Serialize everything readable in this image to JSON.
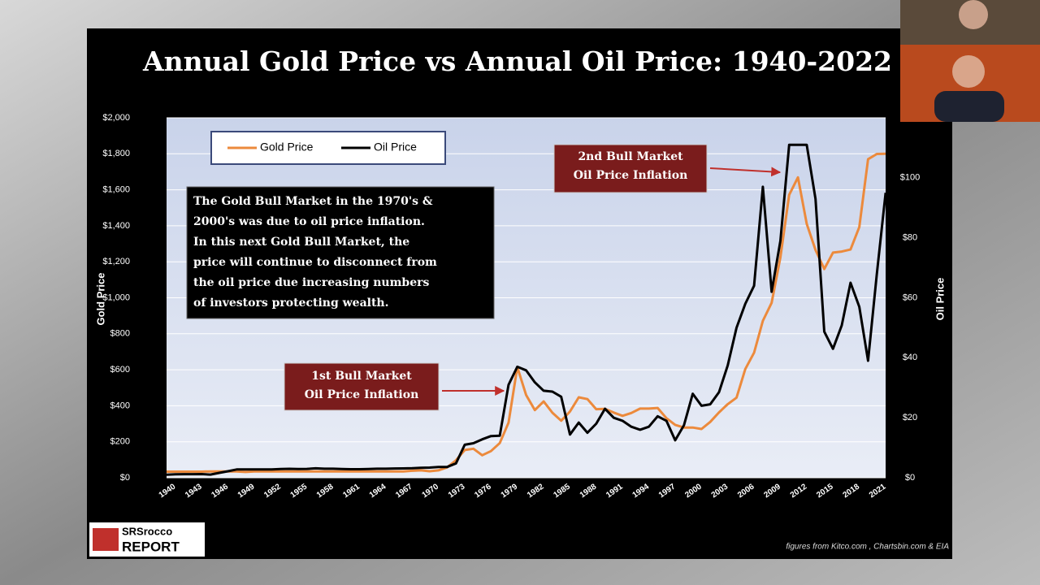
{
  "chart_data": {
    "type": "line",
    "title": "Annual Gold Price vs Annual Oil Price: 1940-2022",
    "x_label": null,
    "y_label": "Gold  Price",
    "y2_label": "Oil Price",
    "x": [
      1940,
      1941,
      1942,
      1943,
      1944,
      1945,
      1946,
      1947,
      1948,
      1949,
      1950,
      1951,
      1952,
      1953,
      1954,
      1955,
      1956,
      1957,
      1958,
      1959,
      1960,
      1961,
      1962,
      1963,
      1964,
      1965,
      1966,
      1967,
      1968,
      1969,
      1970,
      1971,
      1972,
      1973,
      1974,
      1975,
      1976,
      1977,
      1978,
      1979,
      1980,
      1981,
      1982,
      1983,
      1984,
      1985,
      1986,
      1987,
      1988,
      1989,
      1990,
      1991,
      1992,
      1993,
      1994,
      1995,
      1996,
      1997,
      1998,
      1999,
      2000,
      2001,
      2002,
      2003,
      2004,
      2005,
      2006,
      2007,
      2008,
      2009,
      2010,
      2011,
      2012,
      2013,
      2014,
      2015,
      2016,
      2017,
      2018,
      2019,
      2020,
      2021,
      2022
    ],
    "series": [
      {
        "name": "Gold Price",
        "color": "#ec8a3c",
        "axis": "y",
        "values": [
          34,
          34,
          34,
          34,
          34,
          35,
          35,
          35,
          35,
          32,
          35,
          35,
          35,
          35,
          35,
          35,
          35,
          35,
          35,
          35,
          35,
          35,
          35,
          35,
          35,
          35,
          35,
          35,
          39,
          41,
          36,
          41,
          58,
          97,
          154,
          161,
          125,
          148,
          193,
          306,
          615,
          460,
          376,
          424,
          361,
          317,
          368,
          447,
          437,
          381,
          383,
          362,
          344,
          360,
          384,
          384,
          388,
          331,
          294,
          279,
          279,
          271,
          310,
          363,
          409,
          445,
          604,
          695,
          872,
          972,
          1225,
          1572,
          1669,
          1411,
          1266,
          1160,
          1251,
          1257,
          1268,
          1393,
          1770,
          1799,
          1800
        ]
      },
      {
        "name": "Oil Price",
        "color": "#000000",
        "axis": "y2",
        "values": [
          1.02,
          1.14,
          1.19,
          1.2,
          1.21,
          1.05,
          1.63,
          2.16,
          2.77,
          2.77,
          2.77,
          2.77,
          2.77,
          2.92,
          2.99,
          2.93,
          2.94,
          3.14,
          3,
          3,
          2.91,
          2.85,
          2.85,
          2.91,
          3,
          3.01,
          3.1,
          3.12,
          3.18,
          3.32,
          3.39,
          3.6,
          3.6,
          4.8,
          11,
          11.5,
          12.8,
          13.9,
          14,
          31,
          37,
          35.8,
          31.8,
          29,
          28.7,
          27,
          14.4,
          18.4,
          15,
          18,
          23,
          20,
          19,
          17,
          16,
          17,
          20.5,
          19,
          12.5,
          17.5,
          28,
          24,
          24.5,
          28.5,
          37.5,
          50,
          58,
          64,
          97,
          62,
          79,
          111,
          111,
          111,
          93,
          48.7,
          43,
          50.8,
          65,
          57,
          39,
          68,
          95
        ]
      }
    ],
    "xlim": [
      1940,
      2022
    ],
    "xticks": [
      1940,
      1943,
      1946,
      1949,
      1952,
      1955,
      1958,
      1961,
      1964,
      1967,
      1970,
      1973,
      1976,
      1979,
      1982,
      1985,
      1988,
      1991,
      1994,
      1997,
      2000,
      2003,
      2006,
      2009,
      2012,
      2015,
      2018,
      2021
    ],
    "ylim": [
      0,
      2000
    ],
    "yticks": [
      {
        "value": 0,
        "label": "$0"
      },
      {
        "value": 200,
        "label": "$200"
      },
      {
        "value": 400,
        "label": "$400"
      },
      {
        "value": 600,
        "label": "$600"
      },
      {
        "value": 800,
        "label": "$800"
      },
      {
        "value": 1000,
        "label": "$1,000"
      },
      {
        "value": 1200,
        "label": "$1,200"
      },
      {
        "value": 1400,
        "label": "$1,400"
      },
      {
        "value": 1600,
        "label": "$1,600"
      },
      {
        "value": 1800,
        "label": "$1,800"
      },
      {
        "value": 2000,
        "label": "$2,000"
      }
    ],
    "y2lim": [
      0,
      120
    ],
    "y2ticks": [
      {
        "value": 0,
        "label": "$0"
      },
      {
        "value": 20,
        "label": "$20"
      },
      {
        "value": 40,
        "label": "$40"
      },
      {
        "value": 60,
        "label": "$60"
      },
      {
        "value": 80,
        "label": "$80"
      },
      {
        "value": 100,
        "label": "$100"
      }
    ],
    "grid": true,
    "legend": "top-left",
    "note": [
      "The Gold Bull Market in the 1970's &",
      "2000's was due to oil price inflation.",
      "In this next Gold Bull Market, the",
      "price will continue to disconnect from",
      "the oil price due increasing numbers",
      "of investors protecting wealth."
    ],
    "annotations": [
      [
        "1st Bull Market",
        "Oil Price Inflation"
      ],
      [
        "2nd Bull Market",
        "Oil Price Inflation"
      ]
    ],
    "logo": [
      "SRSrocco",
      "REPORT"
    ],
    "source": "figures from Kitco.com , Chartsbin.com & EIA"
  }
}
